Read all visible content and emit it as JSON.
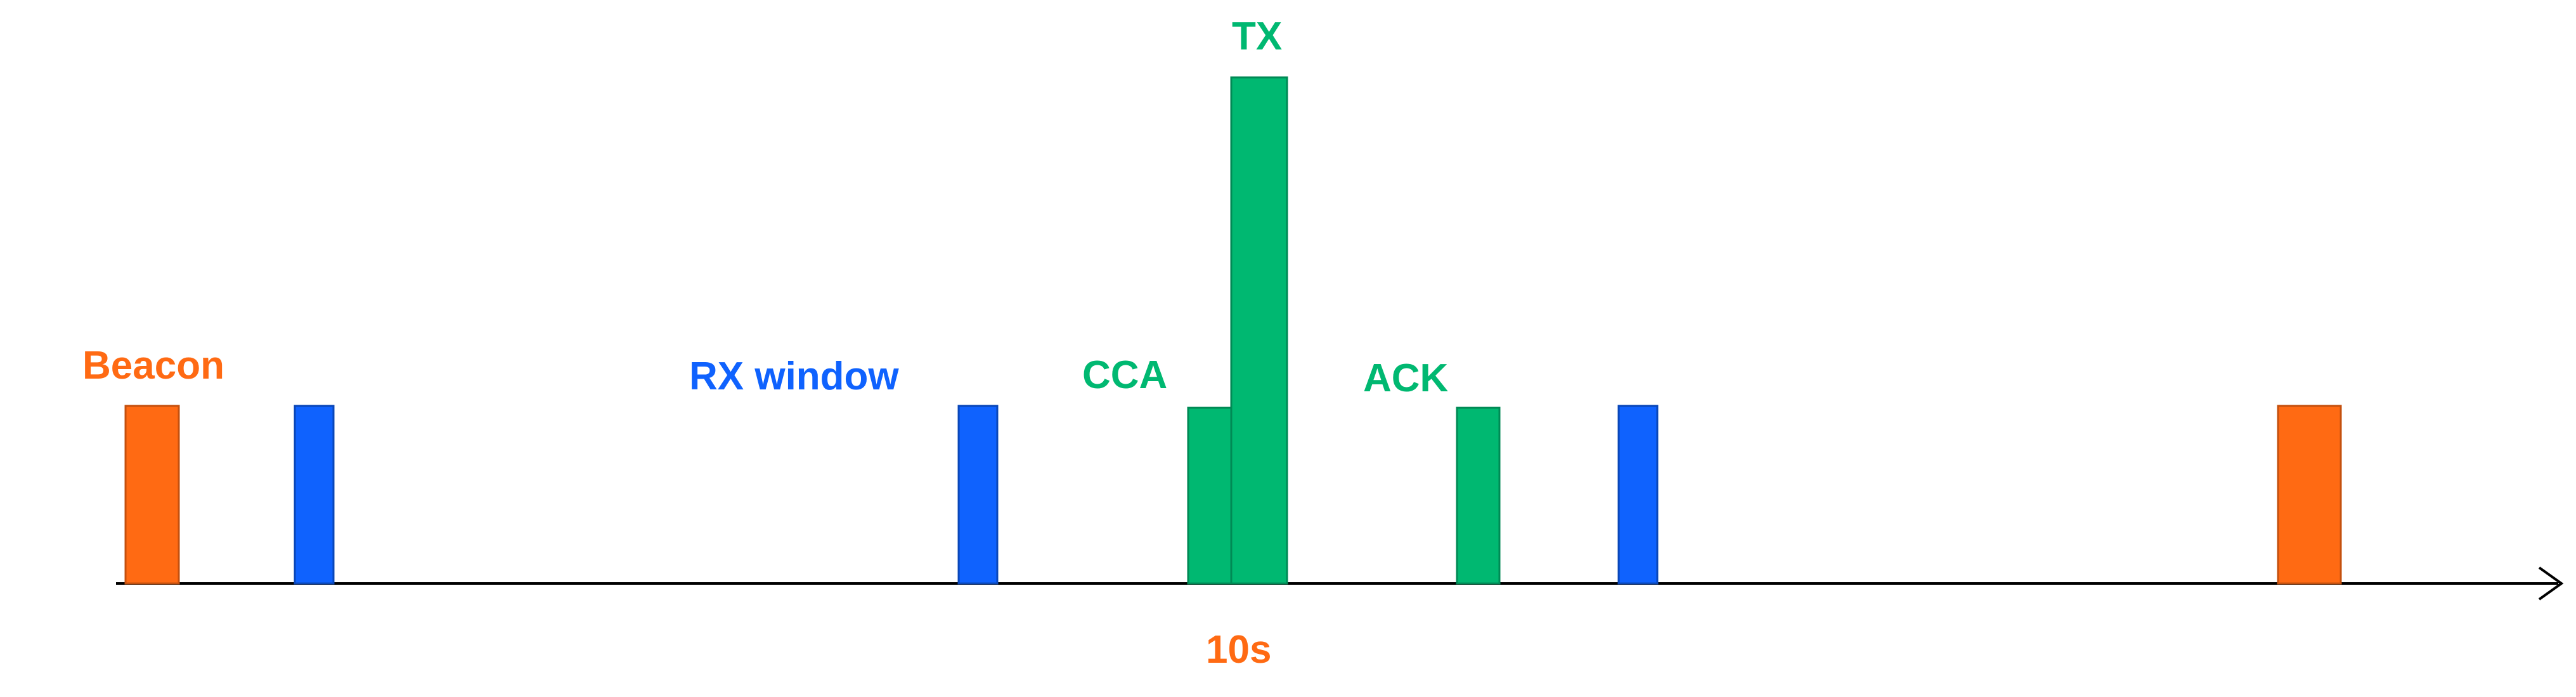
{
  "labels": {
    "beacon": "Beacon",
    "rx_window": "RX window",
    "cca": "CCA",
    "tx": "TX",
    "ack": "ACK",
    "period": "10s"
  },
  "colors": {
    "beacon": "#FF6A13",
    "rx": "#0F62FE",
    "tx_group": "#00B871",
    "axis": "#000000"
  },
  "icons": {
    "axis_arrow": "arrow-right-icon"
  }
}
